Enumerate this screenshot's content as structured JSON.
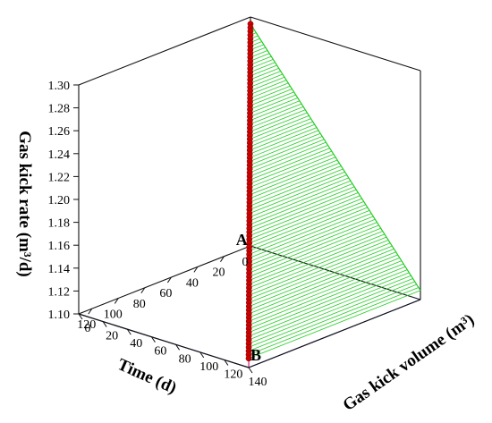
{
  "chart_data": {
    "type": "line",
    "title": "",
    "axes": {
      "x": {
        "label": "Time (d)",
        "ticks": [
          0,
          20,
          40,
          60,
          80,
          100,
          120
        ],
        "range": [
          0,
          130
        ]
      },
      "y": {
        "label": "Gas kick volume (m³)",
        "ticks": [
          0,
          20,
          40,
          60,
          80,
          100,
          120,
          140
        ],
        "range": [
          0,
          140
        ]
      },
      "z": {
        "label": "Gas kick rate (m³/d)",
        "ticks": [
          "1.10",
          "1.12",
          "1.14",
          "1.16",
          "1.18",
          "1.20",
          "1.22",
          "1.24",
          "1.26",
          "1.28",
          "1.30"
        ],
        "range": [
          1.1,
          1.3
        ]
      }
    },
    "series": [
      {
        "name": "",
        "x_range": [
          0,
          130
        ],
        "y_range": [
          0,
          140
        ],
        "z_range": [
          1.294,
          1.108
        ],
        "point_count": 91,
        "color": "#cc0000"
      }
    ],
    "projection_colors": {
      "rate_vs_time_wall": "#e8357a",
      "rate_vs_volume_wall": "#22cc22",
      "volume_vs_time_floor": "#2222dd"
    },
    "annotations": [
      {
        "text": "A",
        "x": 12,
        "y": 0,
        "z": 1.1
      },
      {
        "text": "B",
        "x": 130,
        "y": 140,
        "z": 1.1
      }
    ],
    "grid": false,
    "legend": "none"
  }
}
